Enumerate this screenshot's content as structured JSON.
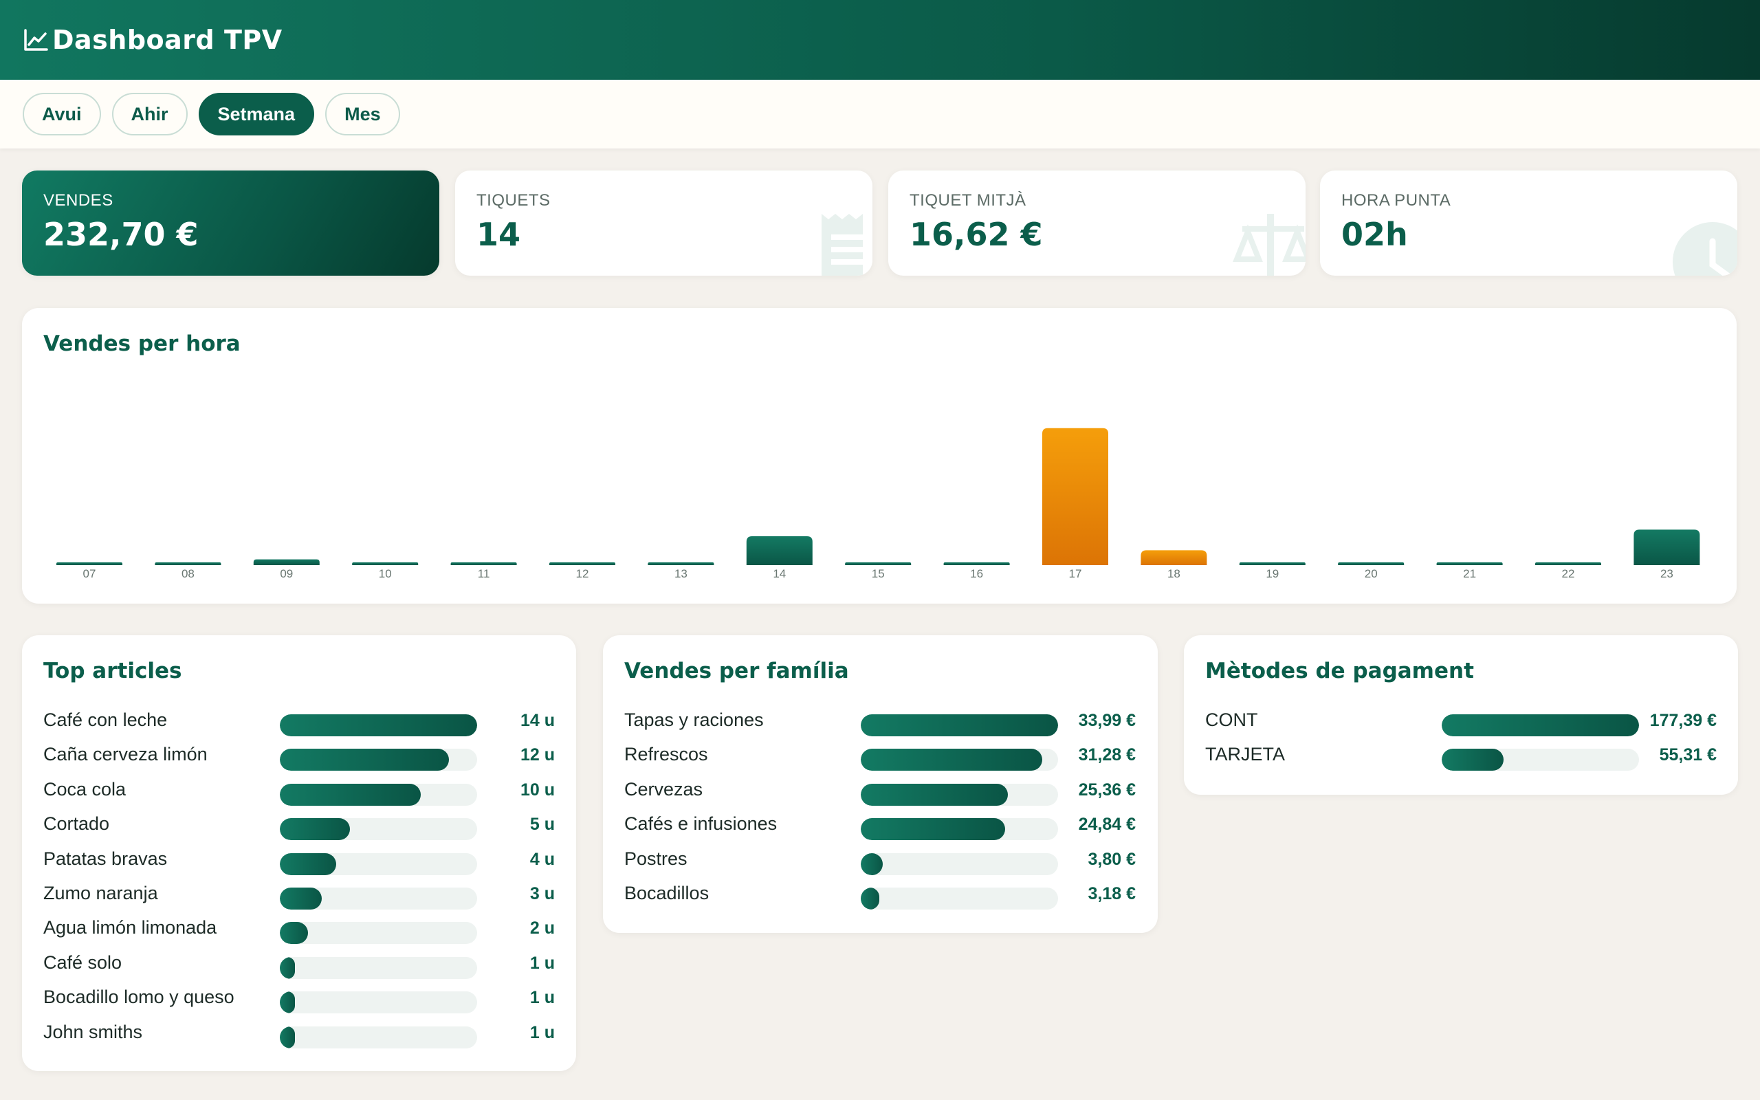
{
  "header": {
    "title": "Dashboard TPV",
    "icon": "line-chart-icon"
  },
  "filters": [
    {
      "label": "Avui",
      "active": false
    },
    {
      "label": "Ahir",
      "active": false
    },
    {
      "label": "Setmana",
      "active": true
    },
    {
      "label": "Mes",
      "active": false
    }
  ],
  "kpis": {
    "vendes": {
      "label": "VENDES",
      "value": "232,70 €"
    },
    "tiquets": {
      "label": "TIQUETS",
      "value": "14",
      "icon": "receipt-icon"
    },
    "tiquet_mitja": {
      "label": "TIQUET MITJÀ",
      "value": "16,62 €",
      "icon": "scale-icon"
    },
    "hora_punta": {
      "label": "HORA PUNTA",
      "value": "02h",
      "icon": "clock-icon"
    }
  },
  "colors": {
    "primary": "#0b5e4b",
    "highlight": "#f0960a",
    "track": "#eef3f1"
  },
  "hourly": {
    "title": "Vendes per hora",
    "chart_data": {
      "type": "bar",
      "categories": [
        "07",
        "08",
        "09",
        "10",
        "11",
        "12",
        "13",
        "14",
        "15",
        "16",
        "17",
        "18",
        "19",
        "20",
        "21",
        "22",
        "23"
      ],
      "values": [
        0,
        0,
        3.5,
        0,
        0,
        0,
        0,
        17.5,
        0,
        0,
        83,
        9,
        0,
        0,
        0,
        0,
        21.5
      ],
      "highlight": [
        "17",
        "18"
      ],
      "ylim": [
        0,
        100
      ]
    }
  },
  "top_articles": {
    "title": "Top articles",
    "items": [
      {
        "name": "Café con leche",
        "value": "14 u",
        "ratio": 1.0
      },
      {
        "name": "Caña cerveza limón",
        "value": "12 u",
        "ratio": 0.857
      },
      {
        "name": "Coca cola",
        "value": "10 u",
        "ratio": 0.714
      },
      {
        "name": "Cortado",
        "value": "5 u",
        "ratio": 0.357
      },
      {
        "name": "Patatas bravas",
        "value": "4 u",
        "ratio": 0.286
      },
      {
        "name": "Zumo naranja",
        "value": "3 u",
        "ratio": 0.214
      },
      {
        "name": "Agua limón limonada",
        "value": "2 u",
        "ratio": 0.143
      },
      {
        "name": "Café solo",
        "value": "1 u",
        "ratio": 0.071
      },
      {
        "name": "Bocadillo lomo y queso",
        "value": "1 u",
        "ratio": 0.071
      },
      {
        "name": "John smiths",
        "value": "1 u",
        "ratio": 0.071
      }
    ]
  },
  "families": {
    "title": "Vendes per família",
    "items": [
      {
        "name": "Tapas y raciones",
        "value": "33,99 €",
        "ratio": 1.0
      },
      {
        "name": "Refrescos",
        "value": "31,28 €",
        "ratio": 0.92
      },
      {
        "name": "Cervezas",
        "value": "25,36 €",
        "ratio": 0.746
      },
      {
        "name": "Cafés e infusiones",
        "value": "24,84 €",
        "ratio": 0.731
      },
      {
        "name": "Postres",
        "value": "3,80 €",
        "ratio": 0.112
      },
      {
        "name": "Bocadillos",
        "value": "3,18 €",
        "ratio": 0.094
      }
    ]
  },
  "payments": {
    "title": "Mètodes de pagament",
    "items": [
      {
        "name": "CONT",
        "value": "177,39 €",
        "ratio": 1.0
      },
      {
        "name": "TARJETA",
        "value": "55,31 €",
        "ratio": 0.312
      }
    ]
  }
}
